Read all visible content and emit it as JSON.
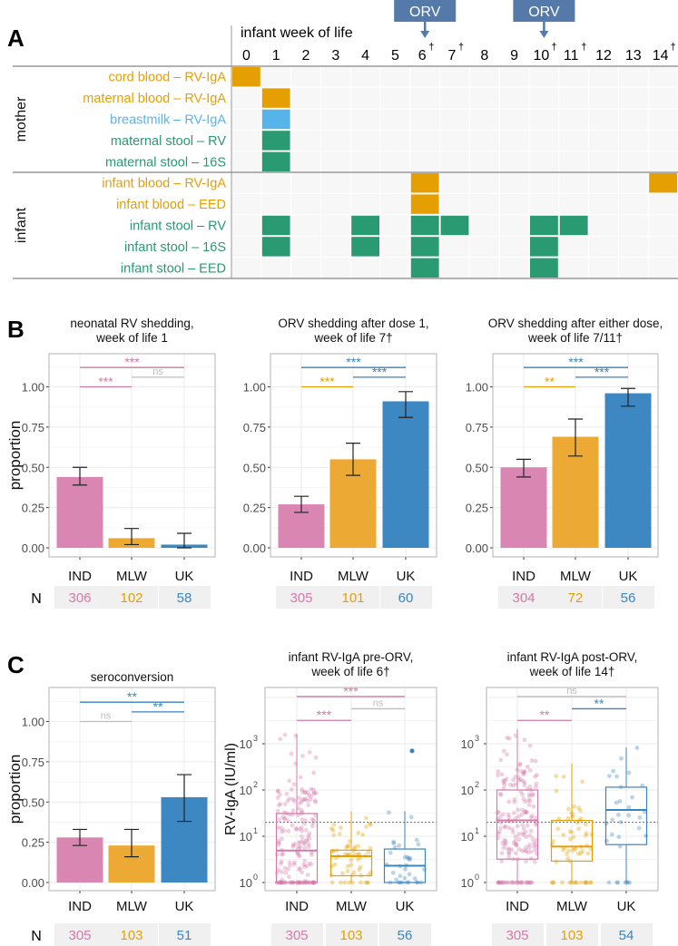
{
  "colors": {
    "IND": "#d986b3",
    "MLW": "#ecaa35",
    "UK": "#3d88c2",
    "IND_text": "#d479aa",
    "MLW_text": "#e69f00",
    "UK_text": "#3a84bf",
    "ns": "#bdbdbd",
    "orange": "#E69F00",
    "skyblue": "#56B4E9",
    "green": "#2a9a72",
    "orv_box": "#5579a8"
  },
  "chart_data": [
    {
      "panel": "A",
      "type": "heatmap",
      "header": "infant week of life",
      "weeks": [
        "0",
        "1",
        "2",
        "3",
        "4",
        "5",
        "6",
        "7",
        "8",
        "9",
        "10",
        "11",
        "12",
        "13",
        "14"
      ],
      "dagger_weeks": [
        "6",
        "7",
        "10",
        "11",
        "14"
      ],
      "dagger": "†",
      "orv_label": "ORV",
      "orv_weeks": [
        "6",
        "10"
      ],
      "groups": [
        {
          "name": "mother",
          "rows": [
            0,
            1,
            2,
            3,
            4
          ]
        },
        {
          "name": "infant",
          "rows": [
            5,
            6,
            7,
            8,
            9
          ]
        }
      ],
      "rows": [
        {
          "label": "cord blood – RV-IgA",
          "color": "orange",
          "weeks": [
            0
          ]
        },
        {
          "label": "maternal blood – RV-IgA",
          "color": "orange",
          "weeks": [
            1
          ]
        },
        {
          "label": "breastmilk – RV-IgA",
          "color": "skyblue",
          "weeks": [
            1
          ]
        },
        {
          "label": "maternal stool – RV",
          "color": "green",
          "weeks": [
            1
          ]
        },
        {
          "label": "maternal stool – 16S",
          "color": "green",
          "weeks": [
            1
          ]
        },
        {
          "label": "infant blood – RV-IgA",
          "color": "orange",
          "weeks": [
            6,
            14
          ]
        },
        {
          "label": "infant blood – EED",
          "color": "orange",
          "weeks": [
            6
          ]
        },
        {
          "label": "infant stool – RV",
          "color": "green",
          "weeks": [
            1,
            4,
            6,
            7,
            10,
            11
          ]
        },
        {
          "label": "infant stool – 16S",
          "color": "green",
          "weeks": [
            1,
            4,
            6,
            10
          ]
        },
        {
          "label": "infant stool – EED",
          "color": "green",
          "weeks": [
            6,
            10
          ]
        }
      ]
    },
    {
      "panel": "B",
      "type": "bar",
      "title": [
        "neonatal RV shedding,",
        "week of life 1"
      ],
      "ylabel": "proportion",
      "ylim": [
        0,
        1.2
      ],
      "yticks": [
        "0.00",
        "0.25",
        "0.50",
        "0.75",
        "1.00"
      ],
      "categories": [
        "IND",
        "MLW",
        "UK"
      ],
      "values": [
        0.44,
        0.06,
        0.02
      ],
      "ci_low": [
        0.39,
        0.02,
        0.0
      ],
      "ci_high": [
        0.5,
        0.12,
        0.09
      ],
      "n_label": "N",
      "n": [
        "306",
        "102",
        "58"
      ],
      "significance": [
        {
          "from": "IND",
          "to": "UK",
          "label": "***",
          "color": "IND_text",
          "y": 1.12
        },
        {
          "from": "MLW",
          "to": "UK",
          "label": "ns",
          "color": "ns",
          "y": 1.06
        },
        {
          "from": "IND",
          "to": "MLW",
          "label": "***",
          "color": "IND_text",
          "y": 1.0
        }
      ]
    },
    {
      "panel": "",
      "type": "bar",
      "title": [
        "ORV shedding after dose 1,",
        "week of life 7†"
      ],
      "ylabel": "",
      "ylim": [
        0,
        1.2
      ],
      "yticks": [
        "0.00",
        "0.25",
        "0.50",
        "0.75",
        "1.00"
      ],
      "categories": [
        "IND",
        "MLW",
        "UK"
      ],
      "values": [
        0.27,
        0.55,
        0.91
      ],
      "ci_low": [
        0.22,
        0.45,
        0.81
      ],
      "ci_high": [
        0.32,
        0.65,
        0.97
      ],
      "n": [
        "305",
        "101",
        "60"
      ],
      "significance": [
        {
          "from": "IND",
          "to": "UK",
          "label": "***",
          "color": "UK_text",
          "y": 1.12
        },
        {
          "from": "MLW",
          "to": "UK",
          "label": "***",
          "color": "UK_text",
          "y": 1.06
        },
        {
          "from": "IND",
          "to": "MLW",
          "label": "***",
          "color": "MLW_text",
          "y": 1.0
        }
      ]
    },
    {
      "panel": "",
      "type": "bar",
      "title": [
        "ORV shedding after either dose,",
        "week of life 7/11†"
      ],
      "ylabel": "",
      "ylim": [
        0,
        1.2
      ],
      "yticks": [
        "0.00",
        "0.25",
        "0.50",
        "0.75",
        "1.00"
      ],
      "categories": [
        "IND",
        "MLW",
        "UK"
      ],
      "values": [
        0.5,
        0.69,
        0.96
      ],
      "ci_low": [
        0.44,
        0.57,
        0.88
      ],
      "ci_high": [
        0.55,
        0.8,
        0.99
      ],
      "n": [
        "304",
        "72",
        "56"
      ],
      "significance": [
        {
          "from": "IND",
          "to": "UK",
          "label": "***",
          "color": "UK_text",
          "y": 1.12
        },
        {
          "from": "MLW",
          "to": "UK",
          "label": "***",
          "color": "UK_text",
          "y": 1.06
        },
        {
          "from": "IND",
          "to": "MLW",
          "label": "**",
          "color": "MLW_text",
          "y": 1.0
        }
      ]
    },
    {
      "panel": "C",
      "type": "bar",
      "title": [
        "",
        "seroconversion"
      ],
      "ylabel": "proportion",
      "ylim": [
        0,
        1.2
      ],
      "yticks": [
        "0.00",
        "0.25",
        "0.50",
        "0.75",
        "1.00"
      ],
      "categories": [
        "IND",
        "MLW",
        "UK"
      ],
      "values": [
        0.28,
        0.23,
        0.53
      ],
      "ci_low": [
        0.23,
        0.16,
        0.38
      ],
      "ci_high": [
        0.33,
        0.33,
        0.67
      ],
      "n_label": "N",
      "n": [
        "305",
        "103",
        "51"
      ],
      "significance": [
        {
          "from": "IND",
          "to": "UK",
          "label": "**",
          "color": "UK_text",
          "y": 1.12
        },
        {
          "from": "MLW",
          "to": "UK",
          "label": "**",
          "color": "UK_text",
          "y": 1.06
        },
        {
          "from": "IND",
          "to": "MLW",
          "label": "ns",
          "color": "ns",
          "y": 1.0
        }
      ]
    },
    {
      "panel": "",
      "type": "box",
      "title": [
        "infant RV-IgA pre-ORV,",
        "week of life 6†"
      ],
      "ylabel": "RV-IgA (IU/ml)",
      "yscale": "log10",
      "ylim": [
        1,
        15000
      ],
      "yticks": [
        "10^0",
        "10^1",
        "10^2",
        "10^3"
      ],
      "threshold": 20,
      "categories": [
        "IND",
        "MLW",
        "UK"
      ],
      "boxes": [
        {
          "low": 1,
          "q1": 1,
          "median": 4.9,
          "q3": 31,
          "high": 1600,
          "outliers": []
        },
        {
          "low": 1,
          "q1": 1.4,
          "median": 3.7,
          "q3": 5,
          "high": 34,
          "outliers": []
        },
        {
          "low": 1,
          "q1": 1,
          "median": 2.3,
          "q3": 5.3,
          "high": 35,
          "outliers": [
            700
          ]
        }
      ],
      "n": [
        "305",
        "103",
        "56"
      ],
      "significance": [
        {
          "from": "IND",
          "to": "UK",
          "label": "***",
          "color": "IND_text",
          "y": 10500
        },
        {
          "from": "MLW",
          "to": "UK",
          "label": "ns",
          "color": "ns",
          "y": 5700
        },
        {
          "from": "IND",
          "to": "MLW",
          "label": "***",
          "color": "IND_text",
          "y": 3200
        }
      ]
    },
    {
      "panel": "",
      "type": "box",
      "title": [
        "infant RV-IgA post-ORV,",
        "week of life 14†"
      ],
      "ylabel": "",
      "yscale": "log10",
      "ylim": [
        1,
        15000
      ],
      "yticks": [
        "10^0",
        "10^1",
        "10^2",
        "10^3"
      ],
      "threshold": 20,
      "categories": [
        "IND",
        "MLW",
        "UK"
      ],
      "boxes": [
        {
          "low": 1,
          "q1": 3.2,
          "median": 22,
          "q3": 100,
          "high": 2100,
          "outliers": []
        },
        {
          "low": 1,
          "q1": 2.9,
          "median": 6,
          "q3": 22,
          "high": 370,
          "outliers": []
        },
        {
          "low": 1,
          "q1": 6.6,
          "median": 37,
          "q3": 115,
          "high": 830,
          "outliers": []
        }
      ],
      "n": [
        "305",
        "103",
        "54"
      ],
      "significance": [
        {
          "from": "IND",
          "to": "UK",
          "label": "ns",
          "color": "ns",
          "y": 10500
        },
        {
          "from": "MLW",
          "to": "UK",
          "label": "**",
          "color": "UK_text",
          "y": 5700
        },
        {
          "from": "IND",
          "to": "MLW",
          "label": "**",
          "color": "IND_text",
          "y": 3200
        }
      ]
    }
  ]
}
